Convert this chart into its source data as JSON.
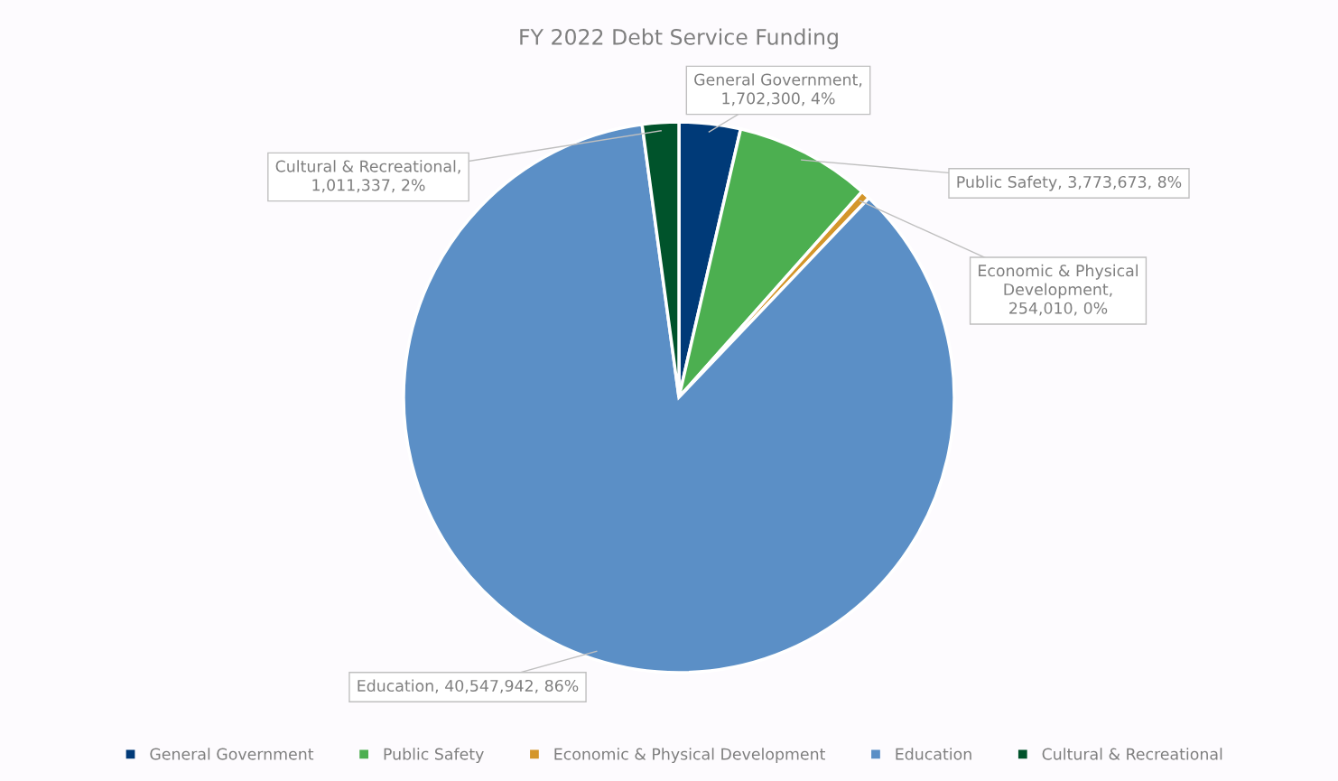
{
  "chart_data": {
    "type": "pie",
    "title": "FY 2022 Debt Service Funding",
    "categories": [
      "General Government",
      "Public Safety",
      "Economic & Physical Development",
      "Education",
      "Cultural & Recreational"
    ],
    "values": [
      1702300,
      3773673,
      254010,
      40547942,
      1011337
    ],
    "colors": [
      "#003a78",
      "#4caf50",
      "#d4962a",
      "#5b8fc6",
      "#00532b"
    ],
    "value_labels": [
      "General Government, 1,702,300, 4%",
      "Public Safety, 3,773,673, 8%",
      "Economic & Physical Development, 254,010, 0%",
      "Education, 40,547,942, 86%",
      "Cultural & Recreational, 1,011,337, 2%"
    ],
    "legend": "bottom"
  }
}
